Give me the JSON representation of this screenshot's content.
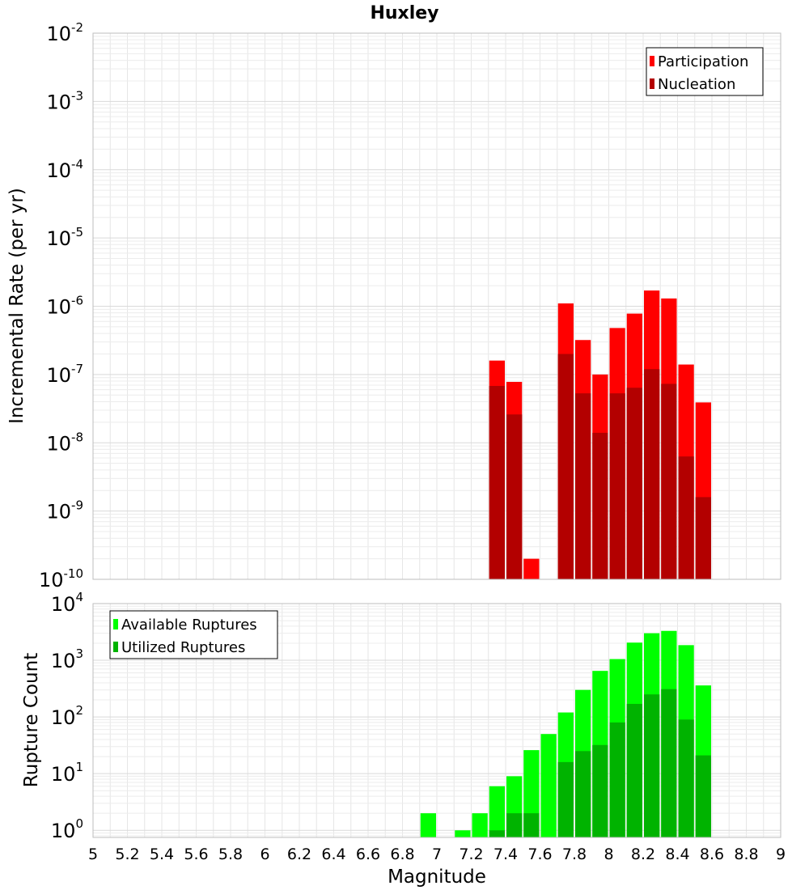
{
  "chart_data": [
    {
      "type": "bar",
      "title": "Huxley",
      "ylabel": "Incremental Rate (per yr)",
      "yscale": "log",
      "ylim": [
        1e-10,
        0.01
      ],
      "xlim": [
        5,
        9
      ],
      "bin_width": 0.1,
      "grid": true,
      "legend_position": "top-right",
      "y_ticks": [
        {
          "base": "10",
          "exp": "-10"
        },
        {
          "base": "10",
          "exp": "-9"
        },
        {
          "base": "10",
          "exp": "-8"
        },
        {
          "base": "10",
          "exp": "-7"
        },
        {
          "base": "10",
          "exp": "-6"
        },
        {
          "base": "10",
          "exp": "-5"
        },
        {
          "base": "10",
          "exp": "-4"
        },
        {
          "base": "10",
          "exp": "-3"
        },
        {
          "base": "10",
          "exp": "-2"
        }
      ],
      "series": [
        {
          "name": "Participation",
          "color": "#ff0000",
          "x": [
            7.35,
            7.45,
            7.55,
            7.75,
            7.85,
            7.95,
            8.05,
            8.15,
            8.25,
            8.35,
            8.45,
            8.55
          ],
          "values": [
            1.6e-07,
            7.8e-08,
            2e-10,
            1.1e-06,
            3.2e-07,
            1e-07,
            4.8e-07,
            7.8e-07,
            1.7e-06,
            1.3e-06,
            1.4e-07,
            3.9e-08
          ]
        },
        {
          "name": "Nucleation",
          "color": "#b30000",
          "x": [
            7.35,
            7.45,
            7.75,
            7.85,
            7.95,
            8.05,
            8.15,
            8.25,
            8.35,
            8.45,
            8.55
          ],
          "values": [
            6.8e-08,
            2.6e-08,
            2e-07,
            5.3e-08,
            1.4e-08,
            5.3e-08,
            6.4e-08,
            1.2e-07,
            7.3e-08,
            6.3e-09,
            1.6e-09
          ]
        }
      ]
    },
    {
      "type": "bar",
      "xlabel": "Magnitude",
      "ylabel": "Rupture Count",
      "yscale": "log",
      "ylim": [
        0.75,
        10000
      ],
      "xlim": [
        5,
        9
      ],
      "bin_width": 0.1,
      "grid": true,
      "legend_position": "top-left",
      "x_ticks": [
        "5",
        "5.2",
        "5.4",
        "5.6",
        "5.8",
        "6",
        "6.2",
        "6.4",
        "6.6",
        "6.8",
        "7",
        "7.2",
        "7.4",
        "7.6",
        "7.8",
        "8",
        "8.2",
        "8.4",
        "8.6",
        "8.8",
        "9"
      ],
      "y_ticks": [
        {
          "base": "10",
          "exp": "0"
        },
        {
          "base": "10",
          "exp": "1"
        },
        {
          "base": "10",
          "exp": "2"
        },
        {
          "base": "10",
          "exp": "3"
        },
        {
          "base": "10",
          "exp": "4"
        }
      ],
      "series": [
        {
          "name": "Available Ruptures",
          "color": "#00ff00",
          "x": [
            6.95,
            7.15,
            7.25,
            7.35,
            7.45,
            7.55,
            7.65,
            7.75,
            7.85,
            7.95,
            8.05,
            8.15,
            8.25,
            8.35,
            8.45,
            8.55
          ],
          "values": [
            2,
            1,
            2,
            6,
            9,
            26,
            50,
            120,
            300,
            650,
            1050,
            2050,
            3000,
            3300,
            1850,
            360
          ]
        },
        {
          "name": "Utilized Ruptures",
          "color": "#00b300",
          "x": [
            7.35,
            7.45,
            7.55,
            7.75,
            7.85,
            7.95,
            8.05,
            8.15,
            8.25,
            8.35,
            8.45,
            8.55
          ],
          "values": [
            1,
            2,
            2,
            16,
            25,
            32,
            80,
            170,
            250,
            310,
            90,
            21
          ]
        }
      ]
    }
  ]
}
